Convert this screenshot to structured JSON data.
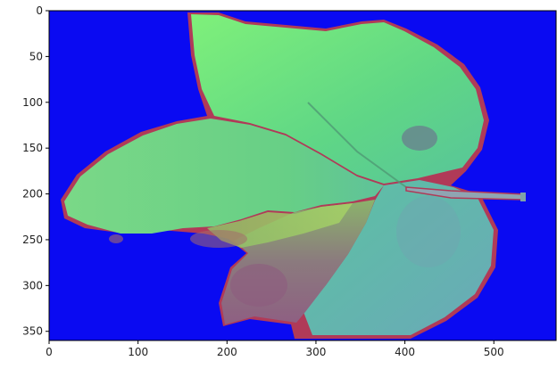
{
  "figure": {
    "kind": "image-with-axes",
    "background_color": "#0a0af2",
    "leaf_edge_color": "#b03a58",
    "leaf_colors": {
      "top_lobe": "#6fe37a",
      "left_lobe": "#6ccf84",
      "right_lobe": "#62bca1",
      "bottom_lobe": "#8a6e86",
      "center_band": "#9bcf6a"
    }
  },
  "axes": {
    "x_range": [
      0,
      570
    ],
    "y_range": [
      0,
      360
    ],
    "y_inverted": true,
    "grid": false,
    "x_ticks": [
      {
        "value": 0,
        "label": "0"
      },
      {
        "value": 100,
        "label": "100"
      },
      {
        "value": 200,
        "label": "200"
      },
      {
        "value": 300,
        "label": "300"
      },
      {
        "value": 400,
        "label": "400"
      },
      {
        "value": 500,
        "label": "500"
      }
    ],
    "y_ticks": [
      {
        "value": 0,
        "label": "0"
      },
      {
        "value": 50,
        "label": "50"
      },
      {
        "value": 100,
        "label": "100"
      },
      {
        "value": 150,
        "label": "150"
      },
      {
        "value": 200,
        "label": "200"
      },
      {
        "value": 250,
        "label": "250"
      },
      {
        "value": 300,
        "label": "300"
      },
      {
        "value": 350,
        "label": "350"
      }
    ]
  }
}
